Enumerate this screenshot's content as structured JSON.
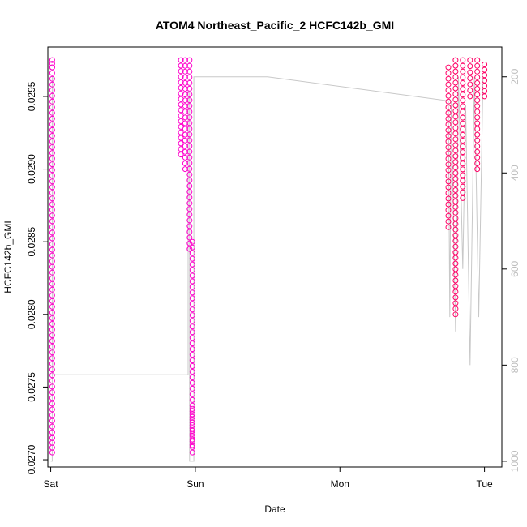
{
  "chart_data": {
    "type": "scatter",
    "title": "ATOM4 Northeast_Pacific_2 HCFC142b_GMI",
    "xlabel": "Date",
    "ylabel": "HCFC142b_GMI",
    "x_ticks": [
      "Sat",
      "Sun",
      "Mon",
      "Tue"
    ],
    "xlim": [
      -0.02,
      3.12
    ],
    "ylim": [
      0.02695,
      0.02984
    ],
    "y_ticks": [
      "0.0270",
      "0.0275",
      "0.0280",
      "0.0285",
      "0.0290",
      "0.0295"
    ],
    "y_tick_values": [
      0.027,
      0.0275,
      0.028,
      0.0285,
      0.029,
      0.0295
    ],
    "y2_ticks": [
      "200",
      "400",
      "600",
      "800",
      "1000"
    ],
    "y2_tick_values": [
      200,
      400,
      600,
      800,
      1000
    ],
    "y2lim": [
      1012,
      138
    ],
    "grid": false,
    "colors": {
      "series_primary": "#ff00cc",
      "series_dense": "#ff0066",
      "pressure_line": "#c8c8c8"
    },
    "series": [
      {
        "kind": "markers",
        "segments": [
          {
            "day": 0.01,
            "points": [
              [
                0.02705,
                0.02715
              ],
              [
                0.02715,
                0.0297
              ],
              [
                0.0297,
                0.02975
              ]
            ]
          },
          {
            "day": 0.9,
            "points": [
              [
                0.0291,
                0.02975
              ]
            ]
          },
          {
            "day": 0.93,
            "points": [
              [
                0.029,
                0.02975
              ]
            ]
          },
          {
            "day": 0.96,
            "points": [
              [
                0.02845,
                0.02975
              ]
            ]
          },
          {
            "day": 0.98,
            "points": [
              [
                0.0271,
                0.0285
              ],
              [
                0.02705,
                0.02735
              ]
            ]
          },
          {
            "day": 2.75,
            "points": [
              [
                0.0286,
                0.0297
              ]
            ]
          },
          {
            "day": 2.8,
            "points": [
              [
                0.028,
                0.02975
              ]
            ]
          },
          {
            "day": 2.85,
            "points": [
              [
                0.0288,
                0.02975
              ]
            ]
          },
          {
            "day": 2.9,
            "points": [
              [
                0.0295,
                0.02975
              ]
            ]
          },
          {
            "day": 2.95,
            "points": [
              [
                0.029,
                0.02975
              ]
            ]
          },
          {
            "day": 3.0,
            "points": [
              [
                0.0295,
                0.02972
              ]
            ]
          }
        ]
      },
      {
        "kind": "pressure",
        "points": [
          [
            0.0,
            1000
          ],
          [
            0.01,
            1000
          ],
          [
            0.01,
            200
          ],
          [
            0.02,
            200
          ],
          [
            0.02,
            820
          ],
          [
            0.94,
            820
          ],
          [
            0.95,
            820
          ],
          [
            0.95,
            230
          ],
          [
            0.96,
            230
          ],
          [
            0.96,
            1000
          ],
          [
            0.99,
            1000
          ],
          [
            0.99,
            200
          ],
          [
            1.5,
            200
          ],
          [
            2.75,
            250
          ],
          [
            2.76,
            700
          ],
          [
            2.77,
            250
          ],
          [
            2.8,
            730
          ],
          [
            2.82,
            200
          ],
          [
            2.85,
            600
          ],
          [
            2.87,
            260
          ],
          [
            2.9,
            800
          ],
          [
            2.93,
            200
          ],
          [
            2.96,
            700
          ],
          [
            2.99,
            200
          ]
        ]
      }
    ]
  }
}
